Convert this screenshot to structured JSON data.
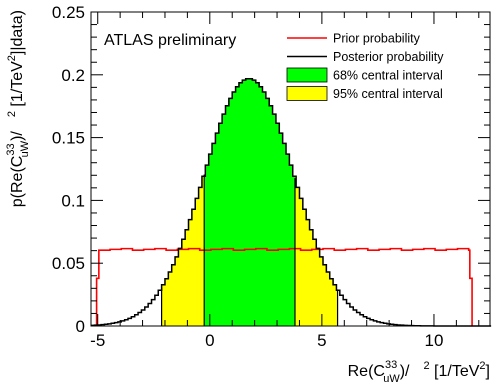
{
  "chart_data": {
    "type": "bar",
    "annotation": "ATLAS preliminary",
    "xlabel": {
      "prefix": "Re(C",
      "sup": "33",
      "sub": "uW",
      "middle": ")/",
      "sup2": "2",
      "suffix": " [1/TeV",
      "sup3": "2",
      "close": "]"
    },
    "ylabel": {
      "prefix": "p(Re(C",
      "sup": "33",
      "sub": "uW",
      "middle": ")/",
      "sup2": "2",
      "suffix": " [1/TeV",
      "sup3": "2",
      "close": "]|data)"
    },
    "xlim": [
      -5.3,
      12.5
    ],
    "ylim": [
      0,
      0.25
    ],
    "xticks": [
      "-5",
      "0",
      "5",
      "10"
    ],
    "yticks": [
      "0",
      "0.05",
      "0.1",
      "0.15",
      "0.2",
      "0.25"
    ],
    "grid": false,
    "legend_position": "top-right",
    "prior": {
      "x_range": [
        -5.05,
        11.6
      ],
      "y": 0.061
    },
    "posterior": {
      "mean": 1.75,
      "sigma": 2.02,
      "peak": 0.197
    },
    "interval_68": [
      -0.25,
      3.8
    ],
    "interval_95": [
      -2.15,
      5.7
    ],
    "series": [
      {
        "name": "Prior probability",
        "color": "#ff0000"
      },
      {
        "name": "Posterior probability",
        "color": "#000000"
      },
      {
        "name": "68% central interval",
        "color": "#00ff00"
      },
      {
        "name": "95% central interval",
        "color": "#ffff00"
      }
    ]
  }
}
